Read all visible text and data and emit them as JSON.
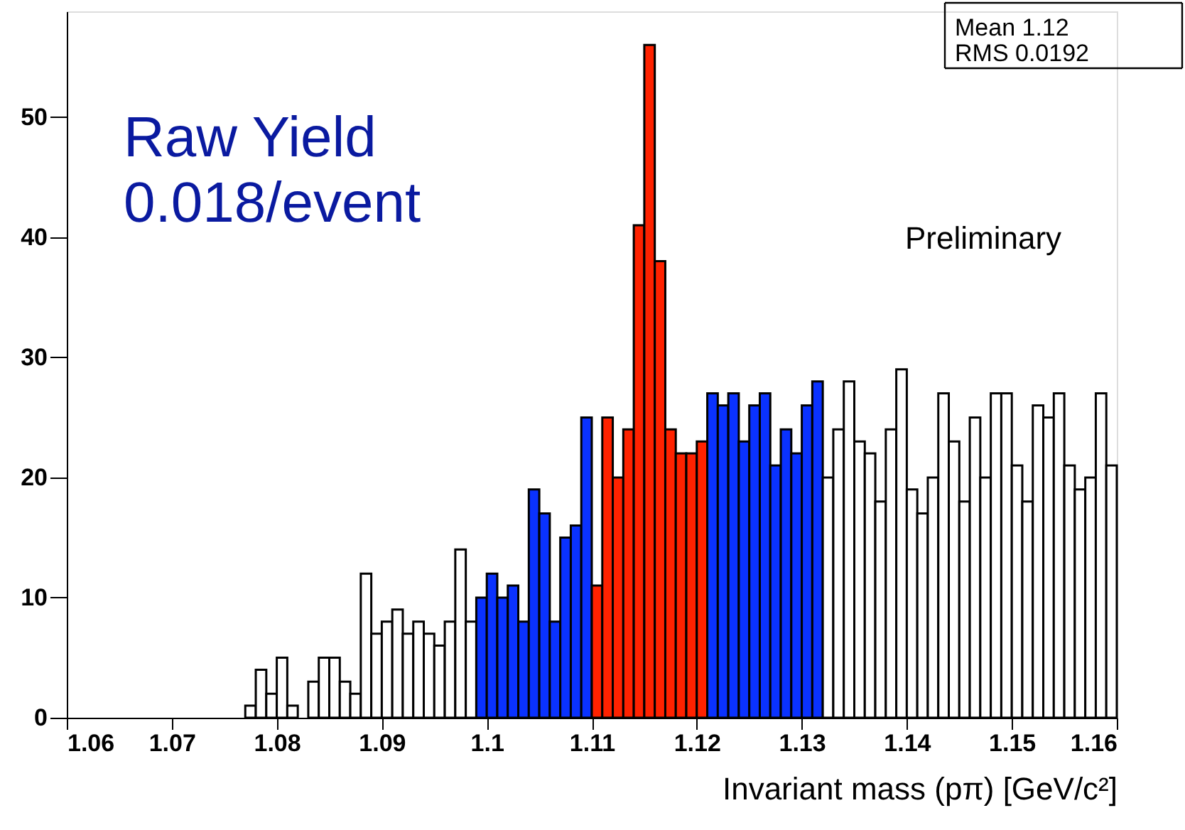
{
  "chart_data": {
    "type": "histogram",
    "xlabel": "Invariant mass (pπ) [GeV/c²]",
    "bins": [
      1.06,
      1.061,
      1.062,
      1.063,
      1.064,
      1.065,
      1.066,
      1.067,
      1.068,
      1.069,
      1.07,
      1.071,
      1.072,
      1.073,
      1.074,
      1.075,
      1.076,
      1.077,
      1.078,
      1.079,
      1.08,
      1.081,
      1.082,
      1.083,
      1.084,
      1.085,
      1.086,
      1.087,
      1.088,
      1.089,
      1.09,
      1.091,
      1.092,
      1.093,
      1.094,
      1.095,
      1.096,
      1.097,
      1.098,
      1.099,
      1.1,
      1.101,
      1.102,
      1.103,
      1.104,
      1.105,
      1.106,
      1.107,
      1.108,
      1.109,
      1.11,
      1.111,
      1.112,
      1.113,
      1.114,
      1.115,
      1.116,
      1.117,
      1.118,
      1.119,
      1.12,
      1.121,
      1.122,
      1.123,
      1.124,
      1.125,
      1.126,
      1.127,
      1.128,
      1.129,
      1.13,
      1.131,
      1.132,
      1.133,
      1.134,
      1.135,
      1.136,
      1.137,
      1.138,
      1.139,
      1.14,
      1.141,
      1.142,
      1.143,
      1.144,
      1.145,
      1.146,
      1.147,
      1.148,
      1.149,
      1.15,
      1.151,
      1.152,
      1.153,
      1.154,
      1.155,
      1.156,
      1.157,
      1.158,
      1.159,
      1.16
    ],
    "values": [
      0,
      0,
      0,
      0,
      0,
      0,
      0,
      0,
      0,
      0,
      0,
      0,
      0,
      0,
      0,
      0,
      0,
      1,
      4,
      2,
      5,
      1,
      0,
      3,
      5,
      5,
      3,
      2,
      12,
      7,
      8,
      9,
      7,
      8,
      7,
      6,
      8,
      14,
      8,
      10,
      12,
      10,
      11,
      8,
      19,
      17,
      8,
      15,
      16,
      25,
      11,
      25,
      20,
      24,
      41,
      56,
      38,
      24,
      22,
      22,
      23,
      27,
      26,
      27,
      23,
      26,
      27,
      21,
      24,
      22,
      26,
      28,
      20,
      24,
      28,
      23,
      22,
      18,
      24,
      29,
      19,
      17,
      20,
      27,
      23,
      18,
      25,
      20,
      27,
      27,
      21,
      18,
      26,
      25,
      27,
      21,
      19,
      20,
      27,
      21
    ],
    "colors": [
      "#ffffff",
      "#ffffff",
      "#ffffff",
      "#ffffff",
      "#ffffff",
      "#ffffff",
      "#ffffff",
      "#ffffff",
      "#ffffff",
      "#ffffff",
      "#ffffff",
      "#ffffff",
      "#ffffff",
      "#ffffff",
      "#ffffff",
      "#ffffff",
      "#ffffff",
      "#ffffff",
      "#ffffff",
      "#ffffff",
      "#ffffff",
      "#ffffff",
      "#ffffff",
      "#ffffff",
      "#ffffff",
      "#ffffff",
      "#ffffff",
      "#ffffff",
      "#ffffff",
      "#ffffff",
      "#ffffff",
      "#ffffff",
      "#ffffff",
      "#ffffff",
      "#ffffff",
      "#ffffff",
      "#ffffff",
      "#ffffff",
      "#ffffff",
      "#0a32ff",
      "#0a32ff",
      "#0a32ff",
      "#0a32ff",
      "#0a32ff",
      "#0a32ff",
      "#0a32ff",
      "#0a32ff",
      "#0a32ff",
      "#0a32ff",
      "#0a32ff",
      "#ff2200",
      "#ff2200",
      "#ff2200",
      "#ff2200",
      "#ff2200",
      "#ff2200",
      "#ff2200",
      "#ff2200",
      "#ff2200",
      "#ff2200",
      "#ff2200",
      "#0a32ff",
      "#0a32ff",
      "#0a32ff",
      "#0a32ff",
      "#0a32ff",
      "#0a32ff",
      "#0a32ff",
      "#0a32ff",
      "#0a32ff",
      "#0a32ff",
      "#0a32ff",
      "#ffffff",
      "#ffffff",
      "#ffffff",
      "#ffffff",
      "#ffffff",
      "#ffffff",
      "#ffffff",
      "#ffffff",
      "#ffffff",
      "#ffffff",
      "#ffffff",
      "#ffffff",
      "#ffffff",
      "#ffffff",
      "#ffffff",
      "#ffffff",
      "#ffffff",
      "#ffffff",
      "#ffffff",
      "#ffffff",
      "#ffffff",
      "#ffffff",
      "#ffffff",
      "#ffffff",
      "#ffffff",
      "#ffffff",
      "#ffffff",
      "#ffffff"
    ],
    "xlim": [
      1.06,
      1.16
    ],
    "xticks": [
      1.06,
      1.07,
      1.08,
      1.09,
      1.1,
      1.11,
      1.12,
      1.13,
      1.14,
      1.15,
      1.16
    ],
    "ylim": [
      0,
      58.8
    ],
    "yticks": [
      0,
      10,
      20,
      30,
      40,
      50
    ],
    "grid": false,
    "annotations": [
      "Raw Yield\n0.018/event",
      "Preliminary",
      "Mean      1.12",
      "RMS    0.0192"
    ]
  }
}
